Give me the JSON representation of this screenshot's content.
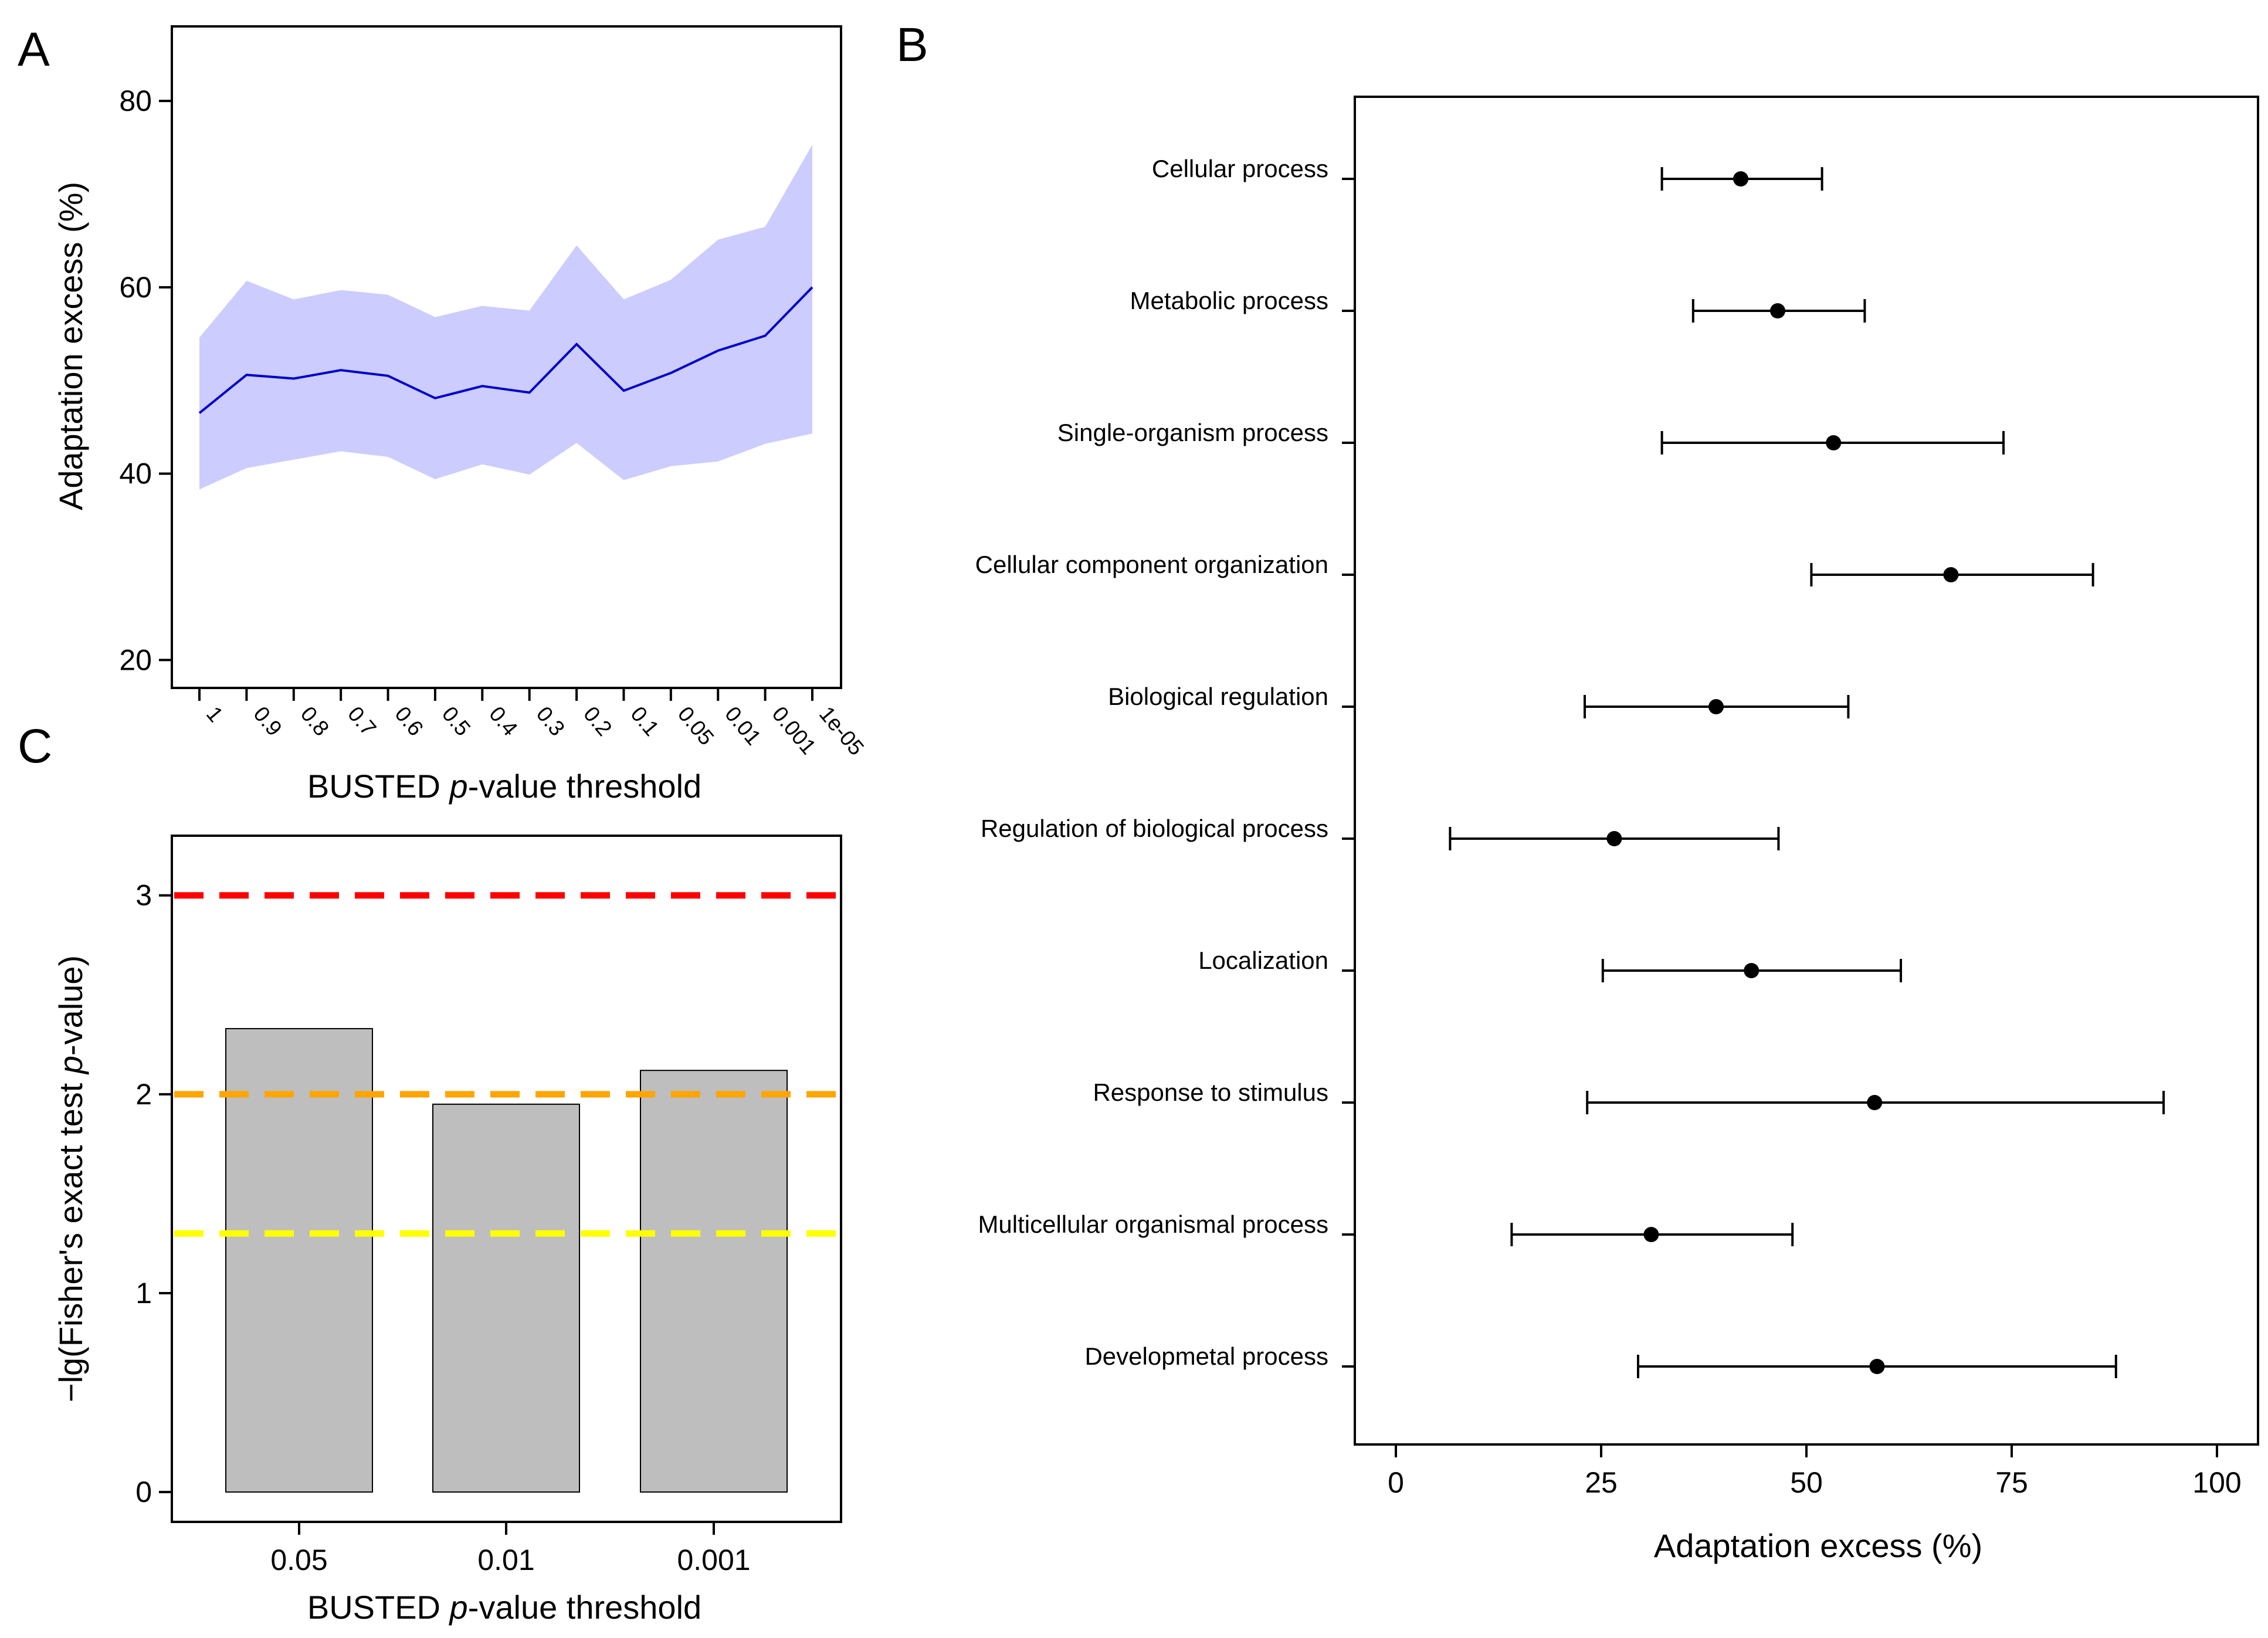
{
  "figure": {
    "panels": [
      "A",
      "B",
      "C"
    ]
  },
  "chart_data": [
    {
      "panel": "A",
      "type": "area",
      "xlabel_prefix": "BUSTED ",
      "xlabel_italic": "p",
      "xlabel_suffix": "-value threshold",
      "ylabel": "Adaptation excess (%)",
      "ylim": [
        17,
        88
      ],
      "yticks": [
        20,
        40,
        60,
        80
      ],
      "categories": [
        "1",
        "0.9",
        "0.8",
        "0.7",
        "0.6",
        "0.5",
        "0.4",
        "0.3",
        "0.2",
        "0.1",
        "0.05",
        "0.01",
        "0.001",
        "1e-05"
      ],
      "series": [
        {
          "name": "mean",
          "values": [
            46.5,
            50.6,
            50.2,
            51.1,
            50.5,
            48.1,
            49.4,
            48.7,
            53.9,
            48.9,
            50.8,
            53.2,
            54.8,
            60.0
          ],
          "color": "#0000cc"
        },
        {
          "name": "upper",
          "values": [
            54.6,
            60.7,
            58.7,
            59.7,
            59.2,
            56.8,
            58.0,
            57.5,
            64.5,
            58.7,
            60.8,
            65.1,
            66.5,
            75.3
          ],
          "color": "#ccccff"
        },
        {
          "name": "lower",
          "values": [
            38.3,
            40.6,
            41.5,
            42.4,
            41.8,
            39.4,
            41.0,
            39.9,
            43.3,
            39.3,
            40.8,
            41.3,
            43.2,
            44.3
          ],
          "color": "#ccccff"
        }
      ]
    },
    {
      "panel": "B",
      "type": "scatter",
      "xlabel": "Adaptation excess (%)",
      "xlim": [
        -5,
        105
      ],
      "xticks": [
        0,
        25,
        50,
        75,
        100
      ],
      "categories": [
        "Cellular process",
        "Metabolic process",
        "Single-organism process",
        "Cellular component organization",
        "Biological regulation",
        "Regulation of biological process",
        "Localization",
        "Response to stimulus",
        "Multicellular organismal process",
        "Developmetal process"
      ],
      "values": [
        42.0,
        46.5,
        53.3,
        67.6,
        39.0,
        26.6,
        43.3,
        58.3,
        31.1,
        58.6
      ],
      "lower": [
        32.4,
        36.2,
        32.4,
        50.6,
        23.0,
        6.6,
        25.2,
        23.3,
        14.1,
        29.5
      ],
      "upper": [
        51.9,
        57.1,
        74.0,
        84.9,
        55.1,
        46.6,
        61.5,
        93.5,
        48.3,
        87.7
      ]
    },
    {
      "panel": "C",
      "type": "bar",
      "xlabel_prefix": "BUSTED ",
      "xlabel_italic": "p",
      "xlabel_suffix": "-value threshold",
      "ylabel_prefix": "−lg(Fisher's exact test ",
      "ylabel_italic": "p",
      "ylabel_suffix": "-value)",
      "ylim": [
        -0.15,
        3.3
      ],
      "yticks": [
        0,
        1,
        2,
        3
      ],
      "categories": [
        "0.05",
        "0.01",
        "0.001"
      ],
      "values": [
        2.33,
        1.95,
        2.12
      ],
      "bar_color": "#bebebe",
      "reference_lines": [
        {
          "value": 3.0,
          "color": "#ff0000"
        },
        {
          "value": 2.0,
          "color": "#ffa500"
        },
        {
          "value": 1.3,
          "color": "#ffff00"
        }
      ]
    }
  ]
}
